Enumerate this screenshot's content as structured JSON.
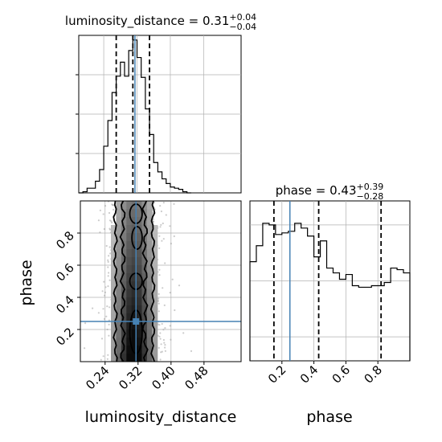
{
  "chart_data": [
    {
      "id": "lum_hist",
      "type": "histogram",
      "title": {
        "param": "luminosity_distance",
        "median": "0.31",
        "plus": "+0.04",
        "minus": "−0.04"
      },
      "xlim": [
        0.18,
        0.57
      ],
      "bins": [
        [
          0.18,
          0.19,
          0
        ],
        [
          0.19,
          0.2,
          1
        ],
        [
          0.2,
          0.21,
          4
        ],
        [
          0.21,
          0.22,
          4
        ],
        [
          0.22,
          0.23,
          10
        ],
        [
          0.23,
          0.24,
          20
        ],
        [
          0.24,
          0.25,
          40
        ],
        [
          0.25,
          0.26,
          62
        ],
        [
          0.26,
          0.27,
          86
        ],
        [
          0.27,
          0.28,
          100
        ],
        [
          0.28,
          0.29,
          112
        ],
        [
          0.29,
          0.3,
          100
        ],
        [
          0.3,
          0.31,
          122
        ],
        [
          0.31,
          0.32,
          131
        ],
        [
          0.32,
          0.33,
          116
        ],
        [
          0.33,
          0.34,
          99
        ],
        [
          0.34,
          0.35,
          72
        ],
        [
          0.35,
          0.36,
          50
        ],
        [
          0.36,
          0.37,
          26
        ],
        [
          0.37,
          0.38,
          18
        ],
        [
          0.38,
          0.39,
          12
        ],
        [
          0.39,
          0.4,
          8
        ],
        [
          0.4,
          0.41,
          5
        ],
        [
          0.41,
          0.42,
          4
        ],
        [
          0.42,
          0.43,
          3
        ],
        [
          0.43,
          0.44,
          1
        ],
        [
          0.44,
          0.45,
          0
        ]
      ],
      "quantile_lines": [
        0.27,
        0.31,
        0.35
      ],
      "truth": 0.315
    },
    {
      "id": "phase_hist",
      "type": "histogram",
      "title": {
        "param": "phase",
        "median": "0.43",
        "plus": "+0.39",
        "minus": "−0.28"
      },
      "xlim": [
        0.0,
        1.0
      ],
      "bins": [
        [
          0.0,
          0.04,
          62
        ],
        [
          0.04,
          0.08,
          72
        ],
        [
          0.08,
          0.12,
          86
        ],
        [
          0.12,
          0.16,
          85
        ],
        [
          0.16,
          0.2,
          79
        ],
        [
          0.2,
          0.24,
          80
        ],
        [
          0.24,
          0.28,
          81
        ],
        [
          0.28,
          0.32,
          86
        ],
        [
          0.32,
          0.36,
          83
        ],
        [
          0.36,
          0.4,
          78
        ],
        [
          0.4,
          0.44,
          65
        ],
        [
          0.44,
          0.48,
          75
        ],
        [
          0.48,
          0.52,
          58
        ],
        [
          0.52,
          0.56,
          55
        ],
        [
          0.56,
          0.6,
          51
        ],
        [
          0.6,
          0.64,
          54
        ],
        [
          0.64,
          0.68,
          47
        ],
        [
          0.68,
          0.72,
          46
        ],
        [
          0.72,
          0.76,
          46
        ],
        [
          0.76,
          0.8,
          47
        ],
        [
          0.8,
          0.84,
          47
        ],
        [
          0.84,
          0.88,
          49
        ],
        [
          0.88,
          0.92,
          58
        ],
        [
          0.92,
          0.96,
          57
        ],
        [
          0.96,
          1.0,
          55
        ]
      ],
      "quantile_lines": [
        0.15,
        0.43,
        0.82
      ],
      "truth": 0.25
    },
    {
      "id": "joint",
      "type": "scatter-density",
      "xlabel": "luminosity_distance",
      "ylabel": "phase",
      "xlim": [
        0.18,
        0.57
      ],
      "ylim": [
        0.0,
        1.0
      ],
      "xticks": [
        "0.24",
        "0.32",
        "0.40",
        "0.48"
      ],
      "yticks": [
        "0.2",
        "0.4",
        "0.6",
        "0.8"
      ],
      "truth": [
        0.315,
        0.25
      ]
    }
  ],
  "phase_xticks": [
    "0.2",
    "0.4",
    "0.6",
    "0.8"
  ],
  "colors": {
    "truth": "#4682b4",
    "hist": "#000000",
    "grid": "#b0b0b0",
    "density": "#000000"
  }
}
